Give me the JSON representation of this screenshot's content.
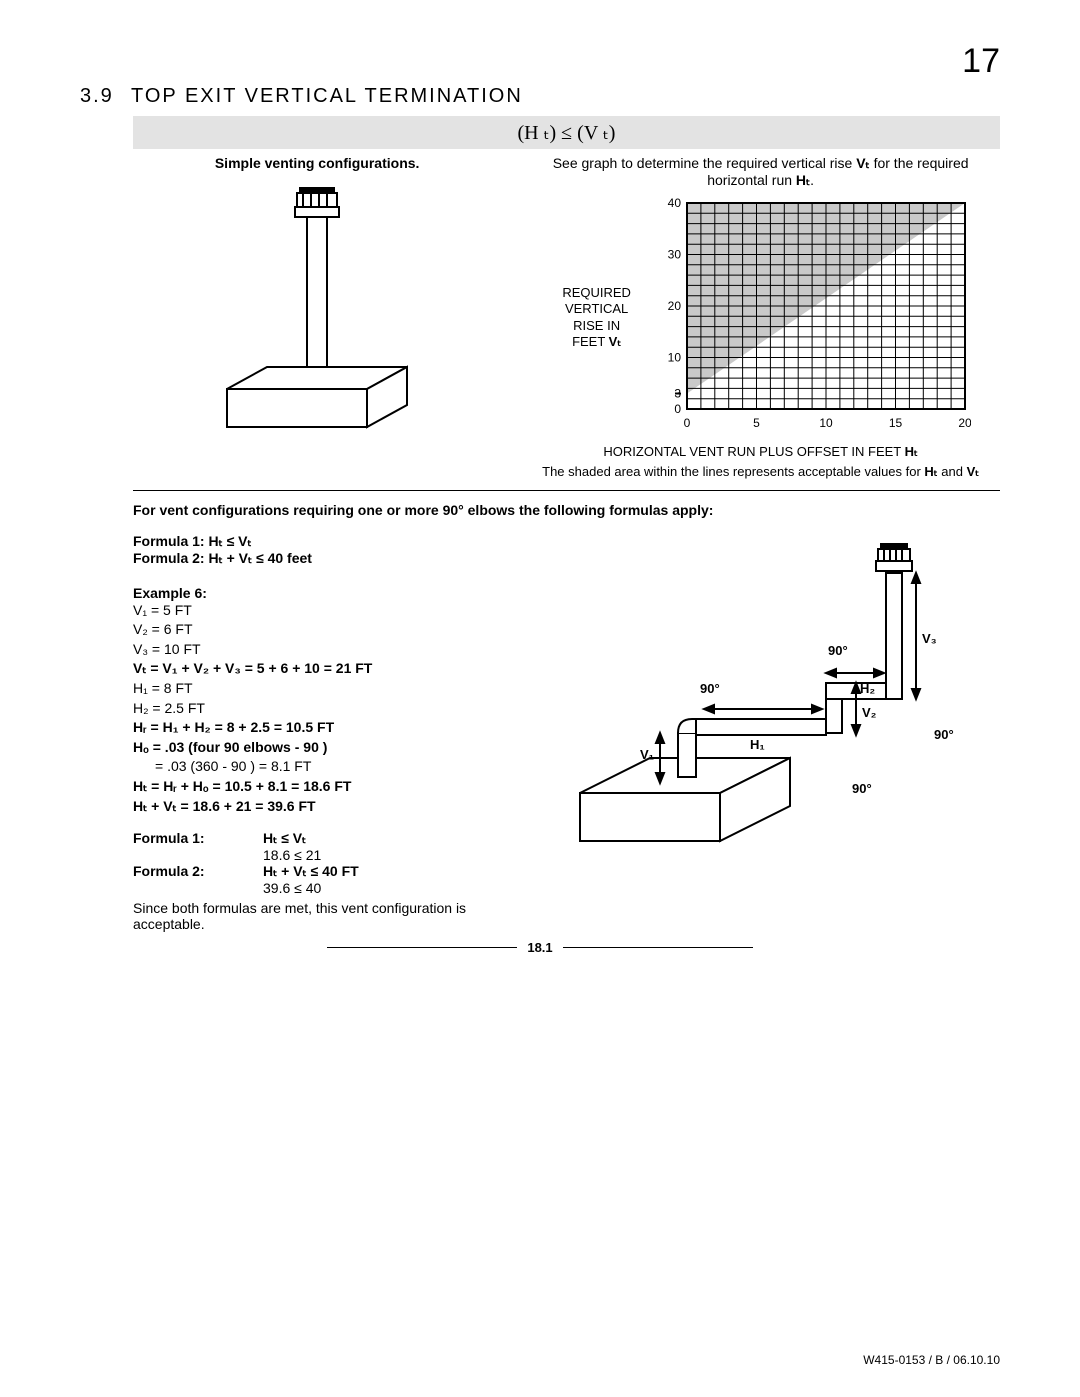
{
  "page_number": "17",
  "section": {
    "num": "3.9",
    "title": "TOP EXIT VERTICAL TERMINATION"
  },
  "inequality": "(H ₜ)  ≤  (V ₜ)",
  "left_caption": "Simple venting configurations.",
  "right_caption_1": "See graph to determine the required vertical rise ",
  "right_caption_2": " for the required horizontal run ",
  "right_caption_VT": "Vₜ",
  "right_caption_HT": "Hₜ",
  "chart": {
    "y_label_1": "REQUIRED",
    "y_label_2": "VERTICAL",
    "y_label_3": "RISE IN",
    "y_label_4": "FEET ",
    "y_label_4_b": "Vₜ",
    "x_label": "HORIZONTAL VENT RUN PLUS OFFSET IN FEET ",
    "x_label_b": "Hₜ",
    "note": "The shaded area within the lines represents acceptable values for ",
    "note_b1": "Hₜ",
    "note_mid": " and ",
    "note_b2": "Vₜ",
    "x_ticks": [
      0,
      5,
      10,
      15,
      20
    ],
    "y_ticks": [
      0,
      3,
      10,
      20,
      30,
      40
    ],
    "x_max": 20,
    "y_max": 40,
    "shaded_poly": [
      [
        0,
        3
      ],
      [
        0,
        40
      ],
      [
        20,
        40
      ]
    ],
    "bg": "#ffffff",
    "grid_color": "#000000",
    "shade_color": "#c9c9c9"
  },
  "formulas_intro": "For vent configurations requiring one or more 90° elbows the following formulas apply:",
  "formula1_label": "Formula 1: Hₜ ≤ Vₜ",
  "formula2_label": "Formula 2: Hₜ + Vₜ ≤ 40 feet",
  "example": {
    "title": "Example 6:",
    "lines": [
      "V₁  = 5 FT",
      "V₂  = 6 FT",
      "V₃  = 10 FT",
      "Vₜ = V₁ + V₂ + V₃ = 5 + 6 + 10 = 21 FT",
      "H₁ = 8 FT",
      "H₂ = 2.5 FT",
      "Hᵣ = H₁ + H₂ = 8 + 2.5 = 10.5 FT",
      "Hₒ = .03 (four 90  elbows - 90 )"
    ],
    "indent_line": "= .03 (360  - 90 ) = 8.1 FT",
    "lines2": [
      "Hₜ = Hᵣ + Hₒ = 10.5 + 8.1 = 18.6 FT",
      "Hₜ + Vₜ = 18.6 + 21 = 39.6 FT"
    ]
  },
  "check": {
    "f1": "Formula 1:",
    "f1r1": "Hₜ ≤ Vₜ",
    "f1r2": "18.6 ≤ 21",
    "f2": "Formula 2:",
    "f2r1": "Hₜ + Vₜ ≤  40 FT",
    "f2r2": "39.6 ≤ 40",
    "conclusion": "Since both formulas are met, this vent configuration is acceptable."
  },
  "illustration_labels": {
    "a90_1": "90°",
    "a90_2": "90°",
    "a90_3": "90°",
    "a90_4": "90°",
    "V1": "V₁",
    "V2": "V₂",
    "V3": "V₃",
    "H1": "H₁",
    "H2": "H₂"
  },
  "figure_num": "18.1",
  "footer": "W415-0153 / B / 06.10.10",
  "colors": {
    "text": "#000000",
    "bg": "#ffffff",
    "rule": "#000000"
  }
}
